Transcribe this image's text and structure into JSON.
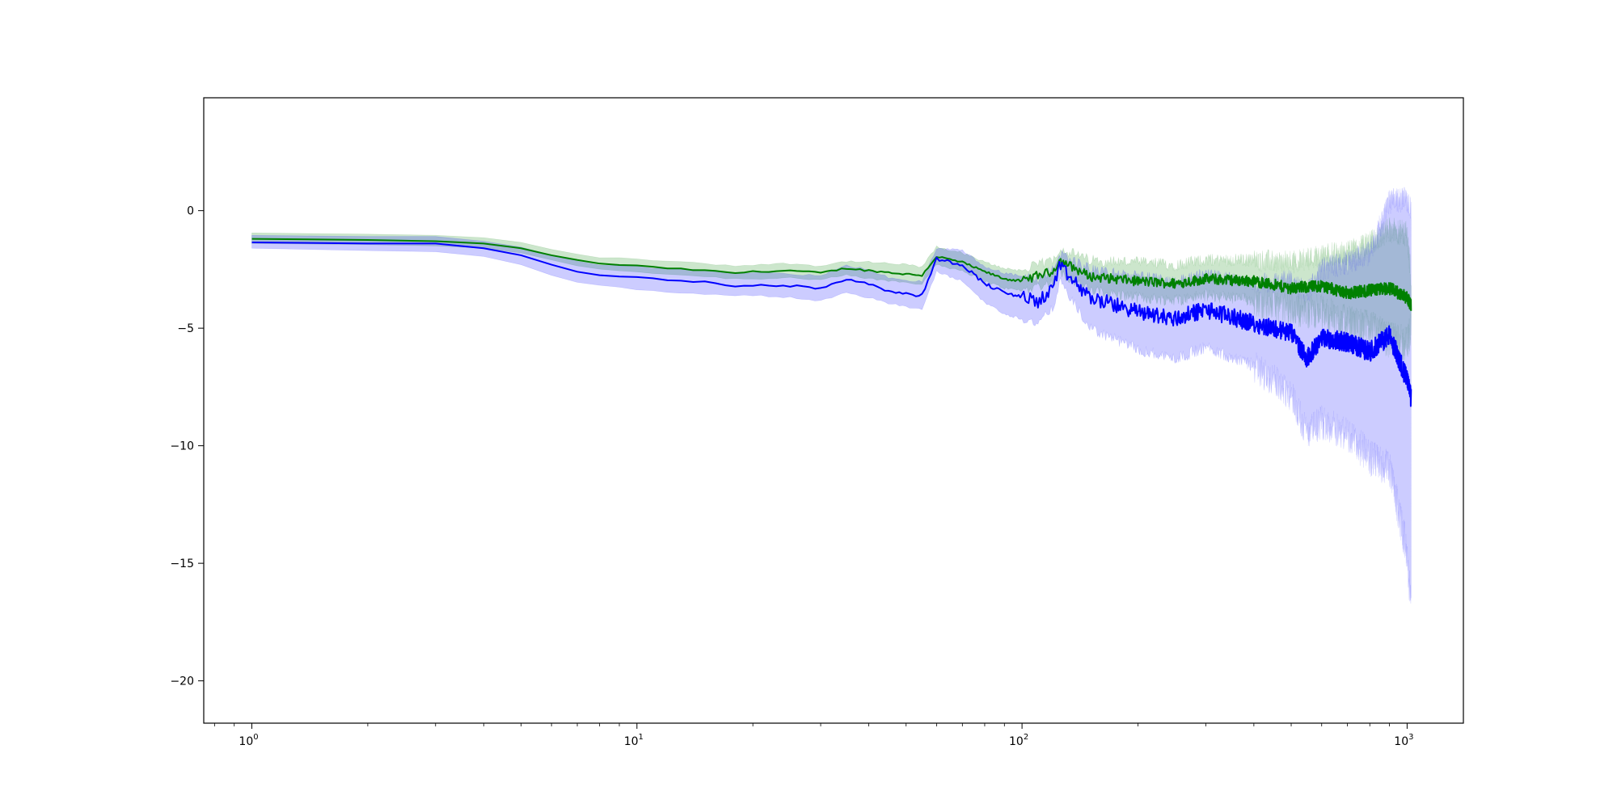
{
  "chart_data": {
    "type": "line",
    "title": "",
    "xlabel": "",
    "ylabel": "",
    "x_scale": "log",
    "xlim": [
      0.75,
      1400
    ],
    "ylim": [
      -21.8,
      4.8
    ],
    "grid": false,
    "legend": "none",
    "x_ticks": [
      {
        "base": "10",
        "exp": "0",
        "value": 1
      },
      {
        "base": "10",
        "exp": "1",
        "value": 10
      },
      {
        "base": "10",
        "exp": "2",
        "value": 100
      },
      {
        "base": "10",
        "exp": "3",
        "value": 1000
      }
    ],
    "y_ticks": [
      {
        "label": "0",
        "value": 0
      },
      {
        "label": "−5",
        "value": -5
      },
      {
        "label": "−10",
        "value": -10
      },
      {
        "label": "−15",
        "value": -15
      },
      {
        "label": "−20",
        "value": -20
      }
    ],
    "series": [
      {
        "color": "#008000",
        "band_color": "#008000",
        "band_opacity": 0.2,
        "x": [
          1,
          2,
          3,
          4,
          5,
          6,
          7,
          8,
          10,
          12,
          15,
          18,
          20,
          25,
          30,
          35,
          40,
          50,
          55,
          60,
          70,
          80,
          90,
          100,
          110,
          120,
          125,
          150,
          200,
          250,
          300,
          400,
          500,
          600,
          700,
          800,
          900,
          1000,
          1024
        ],
        "y": [
          -1.2,
          -1.25,
          -1.3,
          -1.4,
          -1.6,
          -1.9,
          -2.1,
          -2.25,
          -2.35,
          -2.45,
          -2.55,
          -2.65,
          -2.6,
          -2.55,
          -2.65,
          -2.45,
          -2.55,
          -2.7,
          -2.75,
          -1.95,
          -2.2,
          -2.6,
          -2.9,
          -3.0,
          -2.75,
          -2.6,
          -2.1,
          -2.8,
          -3.0,
          -3.1,
          -2.9,
          -3.0,
          -3.3,
          -3.2,
          -3.5,
          -3.4,
          -3.3,
          -3.7,
          -4.0
        ],
        "lower": [
          -1.4,
          -1.45,
          -1.5,
          -1.6,
          -1.8,
          -2.1,
          -2.35,
          -2.5,
          -2.6,
          -2.7,
          -2.8,
          -2.9,
          -2.9,
          -2.85,
          -2.95,
          -2.75,
          -2.9,
          -3.05,
          -3.1,
          -2.3,
          -2.55,
          -3.0,
          -3.3,
          -3.4,
          -3.2,
          -3.05,
          -2.6,
          -3.4,
          -3.7,
          -3.8,
          -3.6,
          -3.8,
          -4.2,
          -4.3,
          -4.8,
          -5.0,
          -5.5,
          -5.7,
          -5.0
        ],
        "upper": [
          -0.95,
          -1.0,
          -1.05,
          -1.15,
          -1.35,
          -1.65,
          -1.85,
          -2.0,
          -2.05,
          -2.15,
          -2.25,
          -2.35,
          -2.3,
          -2.25,
          -2.35,
          -2.15,
          -2.2,
          -2.3,
          -2.4,
          -1.55,
          -1.8,
          -2.2,
          -2.45,
          -2.55,
          -2.3,
          -2.1,
          -1.6,
          -2.1,
          -2.2,
          -2.3,
          -2.1,
          -2.1,
          -2.2,
          -1.9,
          -1.8,
          -1.4,
          -0.8,
          -1.0,
          -2.8
        ]
      },
      {
        "color": "#0000ff",
        "band_color": "#0000ff",
        "band_opacity": 0.2,
        "x": [
          1,
          2,
          3,
          4,
          5,
          6,
          7,
          8,
          10,
          12,
          15,
          18,
          20,
          25,
          30,
          35,
          40,
          45,
          50,
          55,
          60,
          70,
          80,
          90,
          100,
          110,
          120,
          125,
          150,
          200,
          250,
          300,
          400,
          500,
          550,
          600,
          700,
          800,
          900,
          1000,
          1024
        ],
        "y": [
          -1.35,
          -1.4,
          -1.4,
          -1.6,
          -1.9,
          -2.3,
          -2.6,
          -2.75,
          -2.85,
          -2.95,
          -3.05,
          -3.2,
          -3.15,
          -3.2,
          -3.3,
          -2.9,
          -3.1,
          -3.4,
          -3.55,
          -3.6,
          -2.05,
          -2.3,
          -3.1,
          -3.5,
          -3.65,
          -3.9,
          -3.3,
          -2.4,
          -3.7,
          -4.3,
          -4.6,
          -4.2,
          -4.8,
          -5.2,
          -6.3,
          -5.4,
          -5.6,
          -6.0,
          -5.3,
          -7.2,
          -8.0
        ],
        "lower": [
          -1.6,
          -1.7,
          -1.75,
          -1.95,
          -2.3,
          -2.75,
          -3.05,
          -3.2,
          -3.35,
          -3.45,
          -3.55,
          -3.65,
          -3.6,
          -3.7,
          -3.85,
          -3.45,
          -3.7,
          -3.95,
          -4.1,
          -4.2,
          -2.6,
          -3.0,
          -3.9,
          -4.4,
          -4.6,
          -4.8,
          -4.2,
          -3.0,
          -5.0,
          -5.9,
          -6.3,
          -5.8,
          -6.6,
          -7.8,
          -9.5,
          -9.0,
          -9.5,
          -10.5,
          -11.0,
          -14.5,
          -17.0
        ],
        "upper": [
          -1.05,
          -1.1,
          -1.1,
          -1.3,
          -1.55,
          -1.9,
          -2.15,
          -2.3,
          -2.4,
          -2.45,
          -2.55,
          -2.7,
          -2.65,
          -2.7,
          -2.75,
          -2.35,
          -2.5,
          -2.85,
          -3.0,
          -3.0,
          -1.6,
          -1.7,
          -2.4,
          -2.65,
          -2.8,
          -3.0,
          -2.5,
          -1.8,
          -2.5,
          -2.8,
          -3.0,
          -2.7,
          -3.1,
          -3.0,
          -3.5,
          -2.5,
          -2.2,
          -1.8,
          0.4,
          0.5,
          0.0
        ]
      }
    ]
  }
}
